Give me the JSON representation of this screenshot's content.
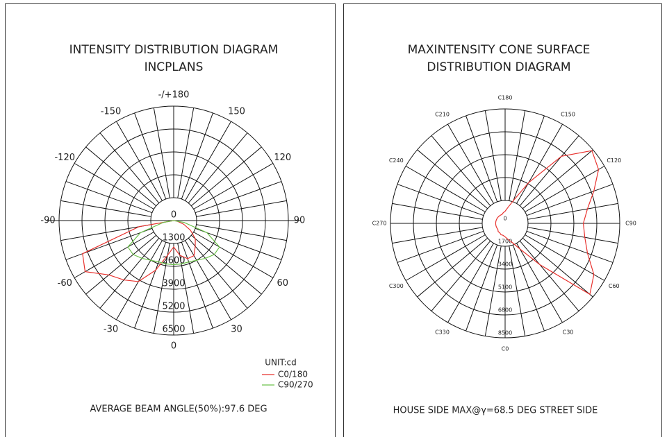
{
  "chart_data": [
    {
      "type": "polar",
      "title": [
        "INTENSITY DISTRIBUTION DIAGRAM",
        "INCPLANS"
      ],
      "angle_labels": [
        {
          "value": 180,
          "label": "-/+180"
        },
        -150,
        150,
        -120,
        120,
        -90,
        90,
        -60,
        60,
        -30,
        30,
        0
      ],
      "rlim": [
        0,
        6500
      ],
      "rticks": [
        0,
        1300,
        2600,
        3900,
        5200,
        6500
      ],
      "grid_angle_step": 10,
      "x": [
        -90,
        -80,
        -70,
        -60,
        -50,
        -40,
        -30,
        -20,
        -10,
        0,
        10,
        20,
        30,
        40,
        50,
        60,
        70,
        80,
        90
      ],
      "series": [
        {
          "name": "C0/180",
          "color": "#e8322e",
          "values": [
            0,
            2000,
            5500,
            5800,
            4800,
            4400,
            4000,
            3000,
            2000,
            1500,
            2000,
            2300,
            2300,
            1900,
            1600,
            1100,
            600,
            200,
            0
          ]
        },
        {
          "name": "C90/270",
          "color": "#6cc24a",
          "values": [
            0,
            600,
            2000,
            3000,
            3000,
            2800,
            2600,
            2500,
            2500,
            2500,
            2500,
            2500,
            2600,
            2800,
            3000,
            3000,
            2000,
            600,
            0
          ]
        }
      ],
      "legend_title": "UNIT:cd",
      "footer": "AVERAGE BEAM ANGLE(50%):97.6 DEG"
    },
    {
      "type": "polar",
      "title": [
        "MAXINTENSITY CONE SURFACE",
        "DISTRIBUTION DIAGRAM"
      ],
      "angle_labels": [
        {
          "value": 0,
          "label": "C0"
        },
        {
          "value": 30,
          "label": "C30"
        },
        {
          "value": 60,
          "label": "C60"
        },
        {
          "value": 90,
          "label": "C90"
        },
        {
          "value": 120,
          "label": "C120"
        },
        {
          "value": 150,
          "label": "C150"
        },
        {
          "value": 180,
          "label": "C180"
        },
        {
          "value": 210,
          "label": "C210"
        },
        {
          "value": 240,
          "label": "C240"
        },
        {
          "value": 270,
          "label": "C270"
        },
        {
          "value": 300,
          "label": "C300"
        },
        {
          "value": 330,
          "label": "C330"
        }
      ],
      "rlim": [
        0,
        8500
      ],
      "rticks": [
        0,
        1700,
        3400,
        5100,
        6800,
        8500
      ],
      "grid_angle_step": 10,
      "closed": true,
      "x": [
        0,
        10,
        20,
        30,
        40,
        50,
        60,
        70,
        80,
        90,
        100,
        110,
        120,
        130,
        140,
        150,
        160,
        170,
        180,
        190,
        200,
        210,
        220,
        230,
        240,
        250,
        260,
        270,
        280,
        290,
        300,
        310,
        320,
        330,
        340,
        350
      ],
      "series": [
        {
          "color": "#e8322e",
          "values": [
            1000,
            1200,
            1500,
            2200,
            4000,
            8200,
            7600,
            6500,
            6000,
            5800,
            6200,
            7000,
            8000,
            8400,
            6500,
            3500,
            1800,
            1200,
            900,
            800,
            700,
            700,
            700,
            700,
            700,
            700,
            700,
            700,
            700,
            700,
            700,
            700,
            800,
            800,
            900,
            900
          ]
        }
      ],
      "footer": "HOUSE SIDE MAX@γ=68.5 DEG STREET SIDE"
    }
  ]
}
